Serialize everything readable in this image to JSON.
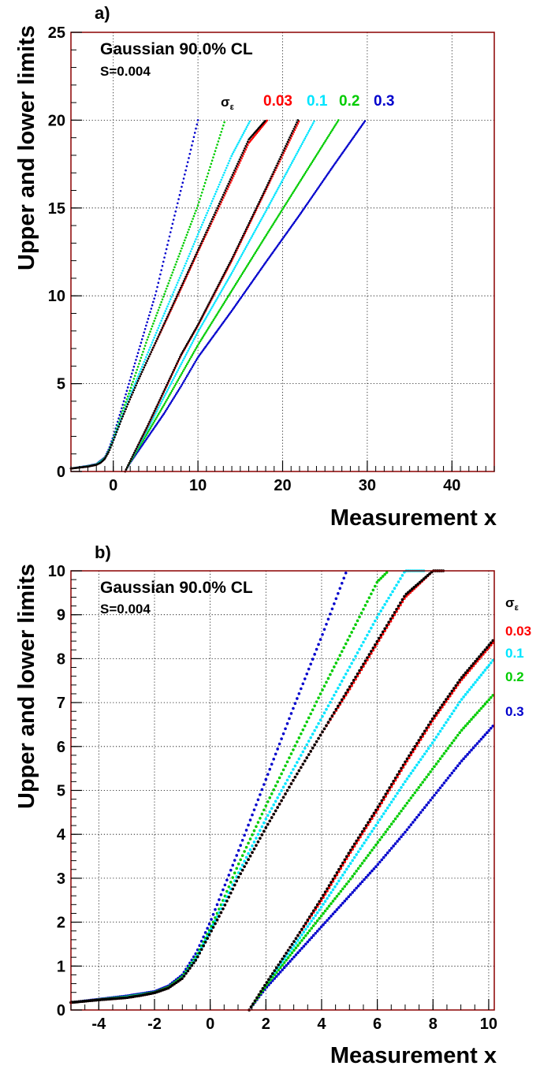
{
  "chart_data": [
    {
      "type": "line",
      "panel_label": "a)",
      "title": "Gaussian 90.0% CL",
      "subtitle": "S=0.004",
      "xlabel": "Measurement x",
      "ylabel": "Upper and lower limits",
      "xlim": [
        -5,
        45
      ],
      "ylim": [
        0,
        25
      ],
      "xticks": [
        0,
        10,
        20,
        30,
        40
      ],
      "yticks": [
        0,
        5,
        10,
        15,
        20,
        25
      ],
      "grid": true,
      "legend_title": "σ_ε",
      "legend_position": "top",
      "colors": {
        "sigma_0": "#000000",
        "sigma_0.03": "#ff0000",
        "sigma_0.1": "#00e5ff",
        "sigma_0.2": "#00cc00",
        "sigma_0.3": "#0000cc",
        "frame": "#8b0000"
      },
      "series": [
        {
          "name": "",
          "kind": "upper",
          "x": [
            -5,
            -3,
            -2,
            -1.5,
            -1,
            -0.5,
            0,
            1,
            2,
            3,
            4,
            6,
            8,
            10,
            12,
            14,
            16,
            18
          ],
          "y": [
            0.17,
            0.28,
            0.38,
            0.5,
            0.72,
            1.15,
            1.75,
            3.0,
            4.15,
            5.25,
            6.3,
            8.4,
            10.5,
            12.6,
            14.7,
            16.8,
            18.9,
            20.0
          ]
        },
        {
          "name": "0.03",
          "kind": "upper",
          "x": [
            -5,
            -3,
            -2,
            -1.5,
            -1,
            -0.5,
            0,
            1,
            2,
            3,
            4,
            6,
            8,
            10,
            12,
            14,
            16,
            18.2
          ],
          "y": [
            0.17,
            0.28,
            0.38,
            0.5,
            0.72,
            1.15,
            1.75,
            3.0,
            4.15,
            5.25,
            6.3,
            8.35,
            10.4,
            12.5,
            14.55,
            16.6,
            18.7,
            20.0
          ]
        },
        {
          "name": "0.1",
          "kind": "upper",
          "x": [
            -5,
            -3,
            -2,
            -1,
            -0.5,
            0,
            1,
            2,
            4,
            6,
            8,
            10,
            12,
            14,
            16.2
          ],
          "y": [
            0.17,
            0.29,
            0.39,
            0.73,
            1.18,
            1.8,
            3.1,
            4.35,
            6.65,
            8.95,
            11.2,
            13.5,
            15.75,
            18.0,
            20.0
          ]
        },
        {
          "name": "0.2",
          "kind": "upper",
          "x": [
            -5,
            -3,
            -2,
            -1,
            -0.5,
            0,
            1,
            2,
            4,
            6,
            8,
            10,
            13.2
          ],
          "y": [
            0.17,
            0.3,
            0.4,
            0.76,
            1.22,
            1.85,
            3.3,
            4.65,
            7.5,
            10.05,
            12.6,
            15.15,
            20.0
          ]
        },
        {
          "name": "0.3",
          "kind": "upper",
          "x": [
            -5,
            -3,
            -2,
            -1,
            -0.5,
            0,
            1,
            2,
            4,
            5,
            7,
            9,
            10
          ],
          "y": [
            0.17,
            0.32,
            0.42,
            0.8,
            1.3,
            2.0,
            3.6,
            5.25,
            8.5,
            10.1,
            14.1,
            18.0,
            20.0
          ]
        },
        {
          "name": "",
          "kind": "lower",
          "x": [
            1.4,
            2,
            4,
            6,
            8,
            10,
            14,
            18,
            21.8
          ],
          "y": [
            0.0,
            0.6,
            2.55,
            4.6,
            6.65,
            8.35,
            12.1,
            16.1,
            20.0
          ]
        },
        {
          "name": "0.03",
          "kind": "lower",
          "x": [
            1.4,
            2,
            4,
            6,
            8,
            10,
            14,
            18,
            22.0
          ],
          "y": [
            0.0,
            0.6,
            2.5,
            4.55,
            6.6,
            8.3,
            12.0,
            16.0,
            20.0
          ]
        },
        {
          "name": "0.1",
          "kind": "lower",
          "x": [
            1.4,
            2,
            4,
            6,
            8,
            10,
            14,
            18,
            23.8
          ],
          "y": [
            0.0,
            0.6,
            2.35,
            4.25,
            6.1,
            7.95,
            11.3,
            14.8,
            20.0
          ]
        },
        {
          "name": "0.2",
          "kind": "lower",
          "x": [
            1.4,
            2,
            4,
            6,
            8,
            10,
            14,
            18,
            26.6
          ],
          "y": [
            0.0,
            0.55,
            2.15,
            3.8,
            5.5,
            7.2,
            10.3,
            13.4,
            20.0
          ]
        },
        {
          "name": "0.3",
          "kind": "lower",
          "x": [
            1.4,
            2,
            4,
            6,
            8,
            10,
            14,
            18,
            22,
            26,
            29.8
          ],
          "y": [
            0.0,
            0.5,
            1.9,
            3.3,
            4.85,
            6.5,
            9.15,
            11.9,
            14.6,
            17.4,
            20.0
          ]
        }
      ]
    },
    {
      "type": "scatter",
      "panel_label": "b)",
      "title": "Gaussian 90.0% CL",
      "subtitle": "S=0.004",
      "xlabel": "Measurement x",
      "ylabel": "Upper and lower limits",
      "xlim": [
        -5,
        10.2
      ],
      "ylim": [
        0,
        10
      ],
      "xticks": [
        -4,
        -2,
        0,
        2,
        4,
        6,
        8,
        10
      ],
      "yticks": [
        0,
        1,
        2,
        3,
        4,
        5,
        6,
        7,
        8,
        9,
        10
      ],
      "grid": true,
      "legend_title": "σ_ε",
      "legend_position": "right",
      "colors": {
        "sigma_0": "#000000",
        "sigma_0.03": "#ff0000",
        "sigma_0.1": "#00e5ff",
        "sigma_0.2": "#00cc00",
        "sigma_0.3": "#0000cc",
        "frame": "#8b0000"
      },
      "series": [
        {
          "name": "",
          "kind": "upper",
          "x": [
            -5,
            -4,
            -3,
            -2.5,
            -2,
            -1.5,
            -1,
            -0.5,
            0,
            0.5,
            1,
            2,
            3,
            4,
            5,
            6,
            7,
            8,
            8.4
          ],
          "y": [
            0.17,
            0.23,
            0.28,
            0.33,
            0.39,
            0.5,
            0.72,
            1.15,
            1.75,
            2.35,
            3.0,
            4.15,
            5.25,
            6.3,
            7.35,
            8.4,
            9.45,
            10.0,
            10.0
          ]
        },
        {
          "name": "0.03",
          "kind": "upper",
          "x": [
            -5,
            -4,
            -3,
            -2.5,
            -2,
            -1.5,
            -1,
            -0.5,
            0,
            0.5,
            1,
            2,
            3,
            4,
            5,
            6,
            7,
            8,
            8.3
          ],
          "y": [
            0.17,
            0.23,
            0.28,
            0.33,
            0.39,
            0.5,
            0.72,
            1.15,
            1.75,
            2.35,
            3.0,
            4.15,
            5.25,
            6.3,
            7.3,
            8.35,
            9.4,
            10.0,
            10.0
          ]
        },
        {
          "name": "0.1",
          "kind": "upper",
          "x": [
            -5,
            -3,
            -2,
            -1.5,
            -1,
            -0.5,
            0,
            0.5,
            1,
            2,
            3,
            4,
            5,
            6,
            7,
            7.7
          ],
          "y": [
            0.17,
            0.29,
            0.39,
            0.5,
            0.73,
            1.18,
            1.8,
            2.45,
            3.1,
            4.35,
            5.5,
            6.65,
            7.8,
            8.95,
            10.0,
            10.0
          ]
        },
        {
          "name": "0.2",
          "kind": "upper",
          "x": [
            -5,
            -3,
            -2,
            -1.5,
            -1,
            -0.5,
            0,
            0.5,
            1,
            2,
            3,
            4,
            5,
            6,
            6.4
          ],
          "y": [
            0.17,
            0.3,
            0.4,
            0.52,
            0.76,
            1.22,
            1.85,
            2.55,
            3.3,
            4.65,
            5.95,
            7.25,
            8.5,
            9.75,
            10.0
          ]
        },
        {
          "name": "0.3",
          "kind": "upper",
          "x": [
            -5,
            -3,
            -2,
            -1.5,
            -1,
            -0.5,
            0,
            0.5,
            1,
            2,
            3,
            4,
            4.9
          ],
          "y": [
            0.17,
            0.32,
            0.42,
            0.55,
            0.8,
            1.3,
            2.0,
            2.8,
            3.6,
            5.25,
            6.9,
            8.5,
            10.0
          ]
        },
        {
          "name": "",
          "kind": "lower",
          "x": [
            1.4,
            2,
            3,
            4,
            5,
            6,
            7,
            8,
            9,
            10.2
          ],
          "y": [
            0.0,
            0.6,
            1.55,
            2.55,
            3.6,
            4.6,
            5.65,
            6.65,
            7.55,
            8.45
          ]
        },
        {
          "name": "0.03",
          "kind": "lower",
          "x": [
            1.4,
            2,
            3,
            4,
            5,
            6,
            7,
            8,
            9,
            10.2
          ],
          "y": [
            0.0,
            0.6,
            1.55,
            2.5,
            3.55,
            4.55,
            5.6,
            6.6,
            7.5,
            8.4
          ]
        },
        {
          "name": "0.1",
          "kind": "lower",
          "x": [
            1.4,
            2,
            3,
            4,
            5,
            6,
            7,
            8,
            9,
            10.2
          ],
          "y": [
            0.0,
            0.6,
            1.45,
            2.35,
            3.3,
            4.25,
            5.2,
            6.1,
            7.05,
            8.0
          ]
        },
        {
          "name": "0.2",
          "kind": "lower",
          "x": [
            1.4,
            2,
            3,
            4,
            5,
            6,
            7,
            8,
            9,
            10.2
          ],
          "y": [
            0.0,
            0.55,
            1.35,
            2.15,
            2.95,
            3.8,
            4.65,
            5.5,
            6.35,
            7.2
          ]
        },
        {
          "name": "0.3",
          "kind": "lower",
          "x": [
            1.4,
            2,
            3,
            4,
            5,
            6,
            7,
            8,
            9,
            10.2
          ],
          "y": [
            0.0,
            0.5,
            1.2,
            1.9,
            2.6,
            3.3,
            4.05,
            4.85,
            5.65,
            6.5
          ]
        }
      ]
    }
  ]
}
